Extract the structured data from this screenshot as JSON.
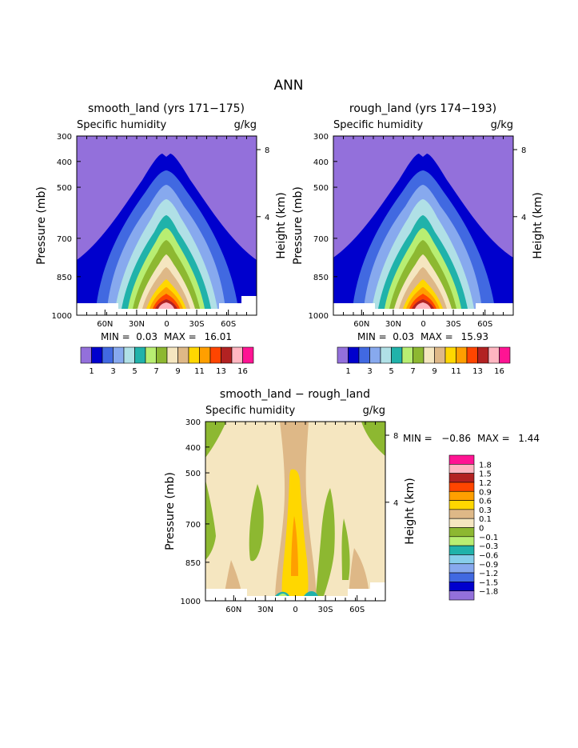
{
  "page": {
    "title": "ANN"
  },
  "chart_data": [
    {
      "type": "contour",
      "title": "smooth_land (yrs 171−175)",
      "subtitle_left": "Specific humidity",
      "subtitle_right": "g/kg",
      "ylabel": "Pressure (mb)",
      "ylabel_right": "Height (km)",
      "y_ticks": [
        "300",
        "400",
        "500",
        "700",
        "850",
        "1000"
      ],
      "y_ticks_right": [
        "8",
        "4"
      ],
      "x_ticks": [
        "60N",
        "30N",
        "0",
        "30S",
        "60S"
      ],
      "min_label": "MIN =",
      "min": "0.03",
      "max_label": "MAX =",
      "max": "16.01",
      "colorbar_labels": [
        "1",
        "3",
        "5",
        "7",
        "9",
        "11",
        "13",
        "16"
      ]
    },
    {
      "type": "contour",
      "title": "rough_land (yrs 174−193)",
      "subtitle_left": "Specific humidity",
      "subtitle_right": "g/kg",
      "ylabel": "Pressure (mb)",
      "ylabel_right": "Height (km)",
      "y_ticks": [
        "300",
        "400",
        "500",
        "700",
        "850",
        "1000"
      ],
      "y_ticks_right": [
        "8",
        "4"
      ],
      "x_ticks": [
        "60N",
        "30N",
        "0",
        "30S",
        "60S"
      ],
      "min_label": "MIN =",
      "min": "0.03",
      "max_label": "MAX =",
      "max": "15.93",
      "colorbar_labels": [
        "1",
        "3",
        "5",
        "7",
        "9",
        "11",
        "13",
        "16"
      ]
    },
    {
      "type": "contour",
      "title": "smooth_land − rough_land",
      "subtitle_left": "Specific humidity",
      "subtitle_right": "g/kg",
      "ylabel": "Pressure (mb)",
      "ylabel_right": "Height (km)",
      "y_ticks": [
        "300",
        "400",
        "500",
        "700",
        "850",
        "1000"
      ],
      "y_ticks_right": [
        "8",
        "4"
      ],
      "x_ticks": [
        "60N",
        "30N",
        "0",
        "30S",
        "60S"
      ],
      "min_label": "MIN =",
      "min": "−0.86",
      "max_label": "MAX =",
      "max": "1.44",
      "colorbar_labels": [
        "1.8",
        "1.5",
        "1.2",
        "0.9",
        "0.6",
        "0.3",
        "0.1",
        "0",
        "−0.1",
        "−0.3",
        "−0.6",
        "−0.9",
        "−1.2",
        "−1.5",
        "−1.8"
      ]
    }
  ],
  "palette_main": [
    "#9370db",
    "#0000cd",
    "#4169e1",
    "#87a9ee",
    "#b0e0e6",
    "#20b2aa",
    "#b8ee72",
    "#8db831",
    "#f5e6c0",
    "#deb887",
    "#ffd700",
    "#ff9f00",
    "#ff4500",
    "#b22222",
    "#ffb6c1",
    "#ff1493"
  ],
  "palette_diff": [
    "#ff1493",
    "#ffb6c1",
    "#b22222",
    "#ff4500",
    "#ff9f00",
    "#ffd700",
    "#deb887",
    "#f5e6c0",
    "#8db831",
    "#b8ee72",
    "#20b2aa",
    "#87ceeb",
    "#87a9ee",
    "#4169e1",
    "#0000cd",
    "#9370db"
  ]
}
